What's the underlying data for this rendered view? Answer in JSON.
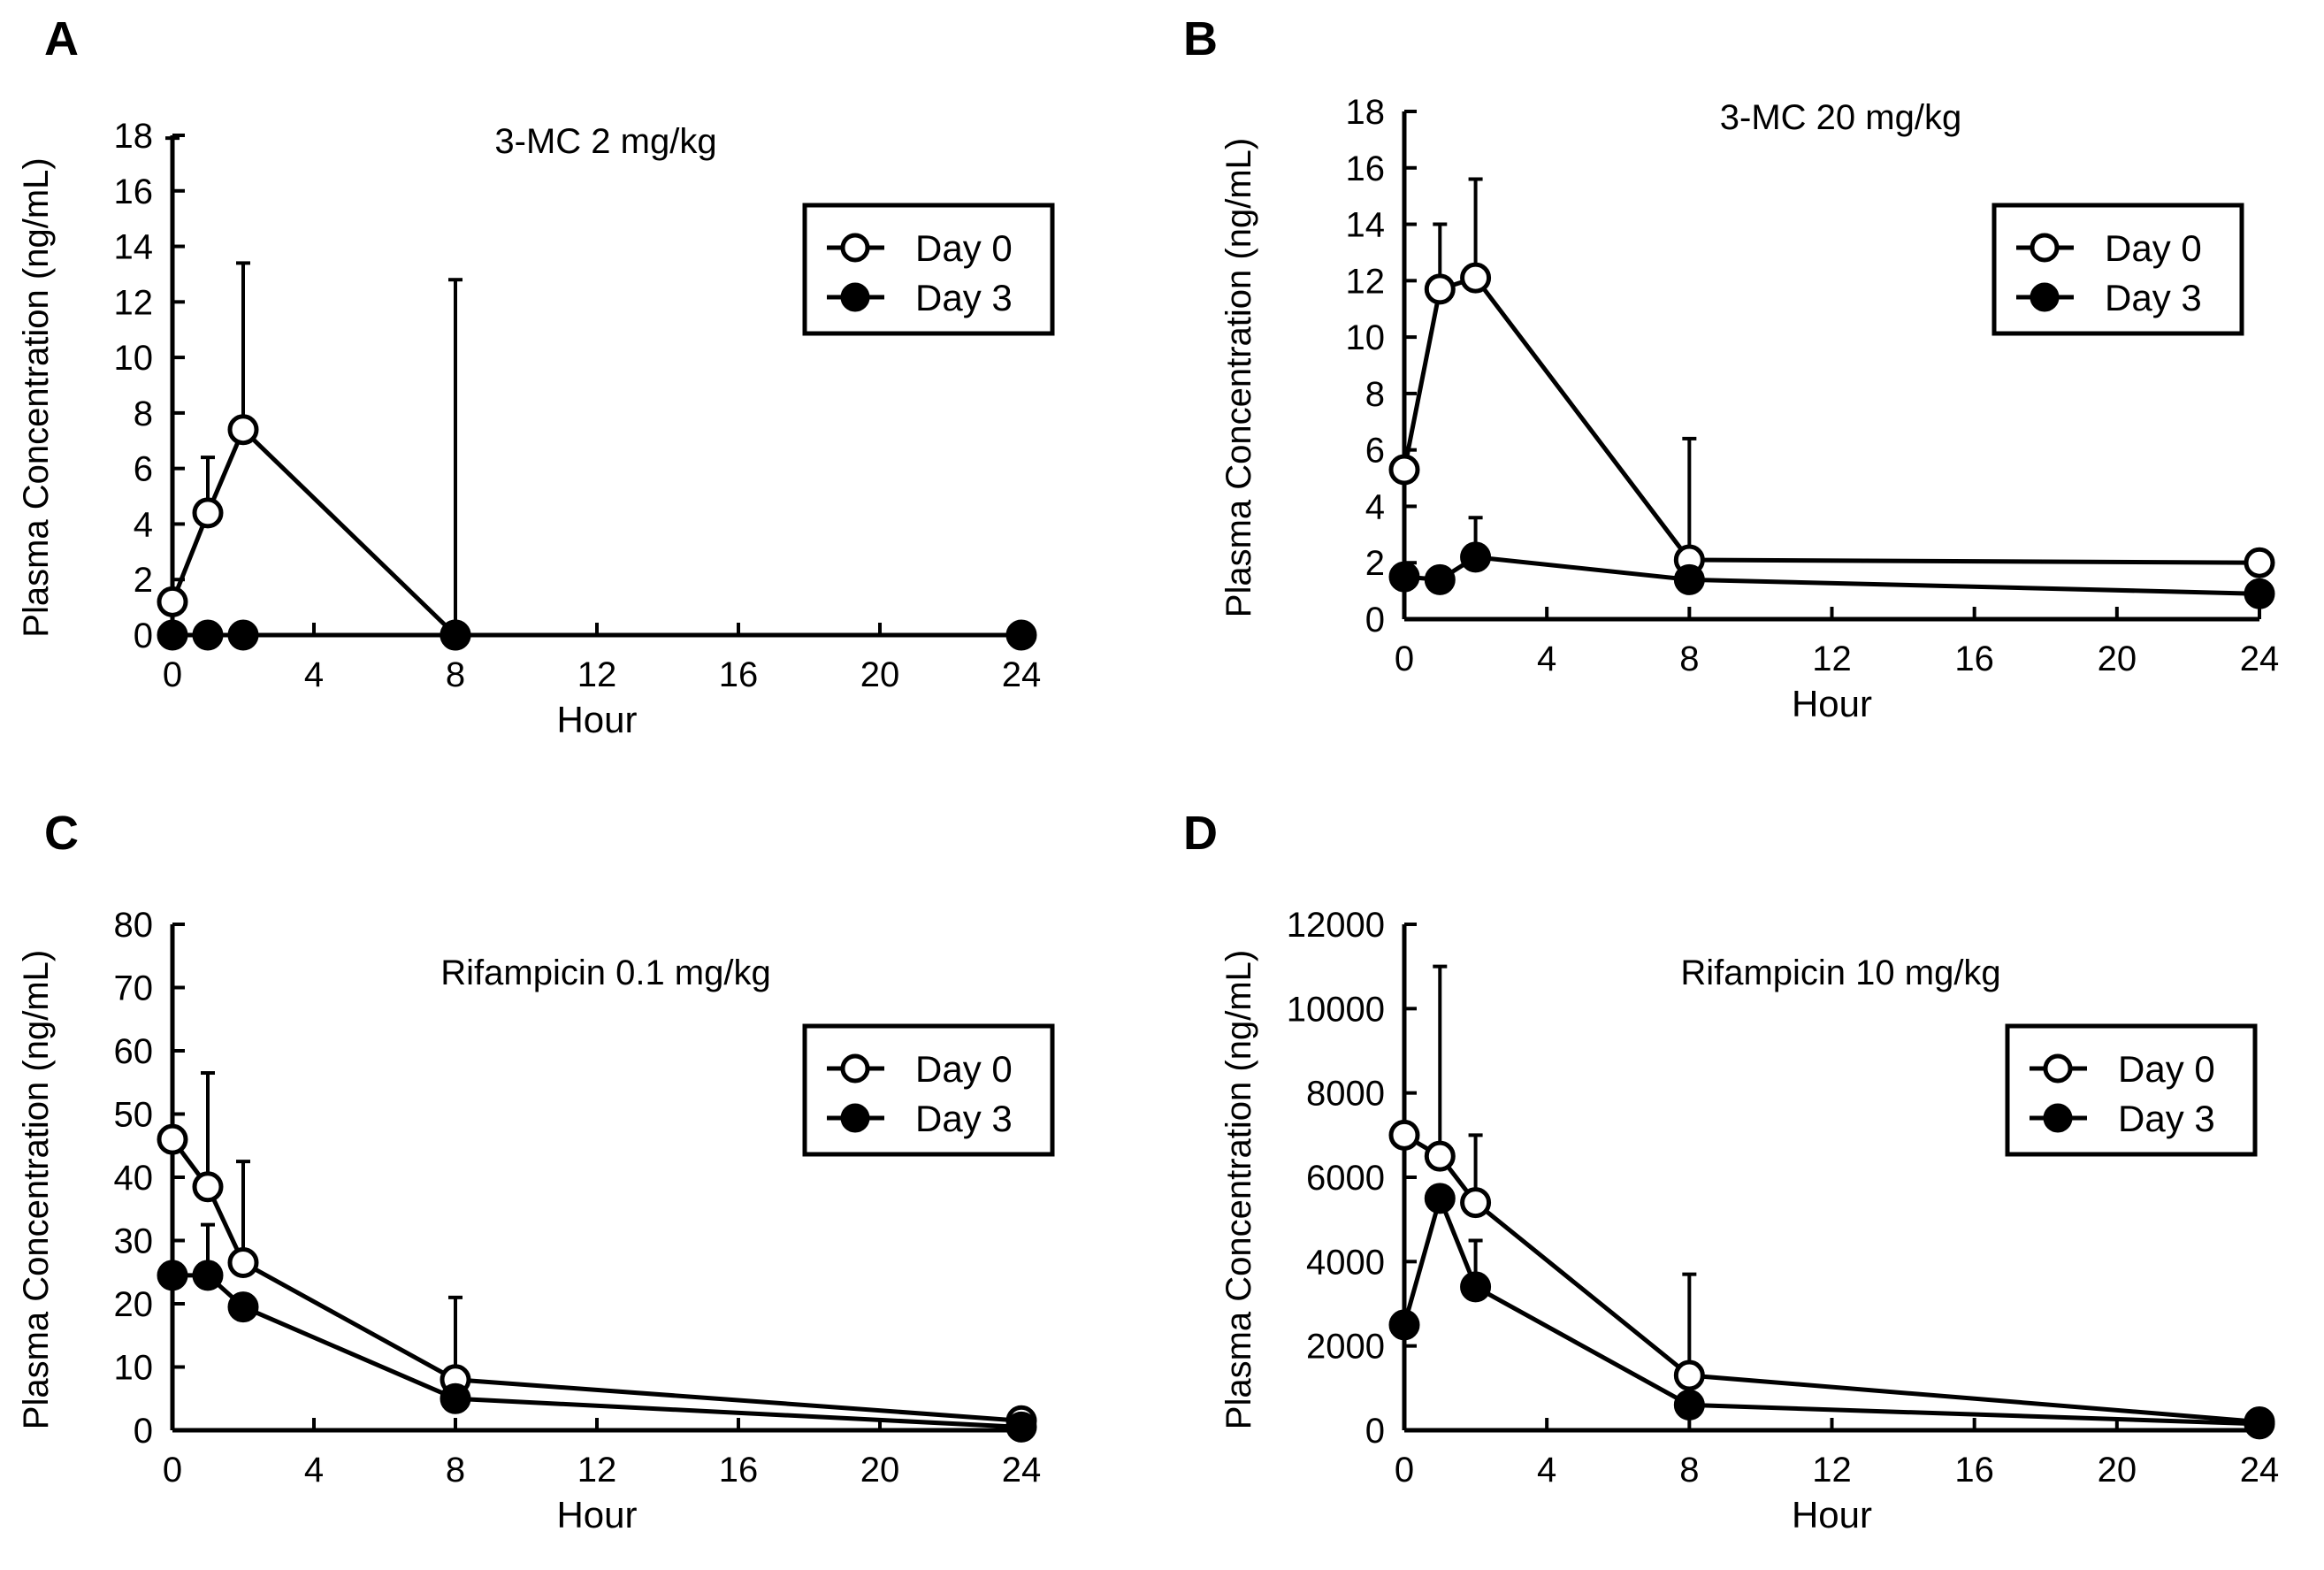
{
  "chart_data": [
    {
      "panel": "A",
      "type": "line",
      "title": "3-MC 2 mg/kg",
      "xlabel": "Hour",
      "ylabel": "Plasma Concentration (ng/mL)",
      "xlim": [
        0,
        24
      ],
      "ylim": [
        0,
        18
      ],
      "xticks": [
        "0",
        "4",
        "8",
        "12",
        "16",
        "20",
        "24"
      ],
      "yticks": [
        "0",
        "2",
        "4",
        "6",
        "8",
        "10",
        "12",
        "14",
        "16",
        "18"
      ],
      "legend": [
        "Day 0",
        "Day 3"
      ],
      "legend_position": "top-right",
      "series": [
        {
          "name": "Day 0",
          "marker": "open-circle",
          "x": [
            0,
            1,
            2,
            8
          ],
          "y": [
            1.2,
            4.4,
            7.4,
            0
          ],
          "err": [
            null,
            6.4,
            13.4,
            12.8
          ]
        },
        {
          "name": "Day 3",
          "marker": "filled-circle",
          "x": [
            0,
            1,
            2,
            8,
            24
          ],
          "y": [
            0,
            0,
            0,
            0,
            0
          ],
          "err": [
            17.9,
            null,
            null,
            null,
            null
          ]
        }
      ]
    },
    {
      "panel": "B",
      "type": "line",
      "title": "3-MC 20 mg/kg",
      "xlabel": "Hour",
      "ylabel": "Plasma Concentration (ng/mL)",
      "xlim": [
        0,
        24
      ],
      "ylim": [
        0,
        18
      ],
      "xticks": [
        "0",
        "4",
        "8",
        "12",
        "16",
        "20",
        "24"
      ],
      "yticks": [
        "0",
        "2",
        "4",
        "6",
        "8",
        "10",
        "12",
        "14",
        "16",
        "18"
      ],
      "legend": [
        "Day 0",
        "Day 3"
      ],
      "legend_position": "top-right",
      "series": [
        {
          "name": "Day 0",
          "marker": "open-circle",
          "x": [
            0,
            1,
            2,
            8,
            24
          ],
          "y": [
            5.3,
            11.7,
            12.1,
            2.1,
            2.0
          ],
          "err": [
            null,
            14.0,
            15.6,
            6.4,
            null
          ]
        },
        {
          "name": "Day 3",
          "marker": "filled-circle",
          "x": [
            0,
            1,
            2,
            8,
            24
          ],
          "y": [
            1.5,
            1.4,
            2.2,
            1.4,
            0.9
          ],
          "err": [
            null,
            null,
            3.6,
            null,
            null
          ]
        }
      ]
    },
    {
      "panel": "C",
      "type": "line",
      "title": "Rifampicin 0.1 mg/kg",
      "xlabel": "Hour",
      "ylabel": "Plasma Concentration (ng/mL)",
      "xlim": [
        0,
        24
      ],
      "ylim": [
        0,
        80
      ],
      "xticks": [
        "0",
        "4",
        "8",
        "12",
        "16",
        "20",
        "24"
      ],
      "yticks": [
        "0",
        "10",
        "20",
        "30",
        "40",
        "50",
        "60",
        "70",
        "80"
      ],
      "legend": [
        "Day 0",
        "Day 3"
      ],
      "legend_position": "top-right",
      "series": [
        {
          "name": "Day 0",
          "marker": "open-circle",
          "x": [
            0,
            1,
            2,
            8,
            24
          ],
          "y": [
            46,
            38.5,
            26.5,
            8,
            1.5
          ],
          "err": [
            null,
            56.5,
            42.5,
            21,
            null
          ]
        },
        {
          "name": "Day 3",
          "marker": "filled-circle",
          "x": [
            0,
            1,
            2,
            8,
            24
          ],
          "y": [
            24.5,
            24.5,
            19.5,
            5,
            0.5
          ],
          "err": [
            null,
            32.5,
            null,
            null,
            null
          ]
        }
      ]
    },
    {
      "panel": "D",
      "type": "line",
      "title": "Rifampicin 10 mg/kg",
      "xlabel": "Hour",
      "ylabel": "Plasma Concentration (ng/mL)",
      "xlim": [
        0,
        24
      ],
      "ylim": [
        0,
        12000
      ],
      "xticks": [
        "0",
        "4",
        "8",
        "12",
        "16",
        "20",
        "24"
      ],
      "yticks": [
        "0",
        "2000",
        "4000",
        "6000",
        "8000",
        "10000",
        "12000"
      ],
      "legend": [
        "Day 0",
        "Day 3"
      ],
      "legend_position": "top-right",
      "series": [
        {
          "name": "Day 0",
          "marker": "open-circle",
          "x": [
            0,
            1,
            2,
            8,
            24
          ],
          "y": [
            7000,
            6500,
            5400,
            1300,
            200
          ],
          "err": [
            null,
            11000,
            7000,
            3700,
            null
          ]
        },
        {
          "name": "Day 3",
          "marker": "filled-circle",
          "x": [
            0,
            1,
            2,
            8,
            24
          ],
          "y": [
            2500,
            5500,
            3400,
            600,
            150
          ],
          "err": [
            null,
            null,
            4500,
            null,
            null
          ]
        }
      ]
    }
  ]
}
